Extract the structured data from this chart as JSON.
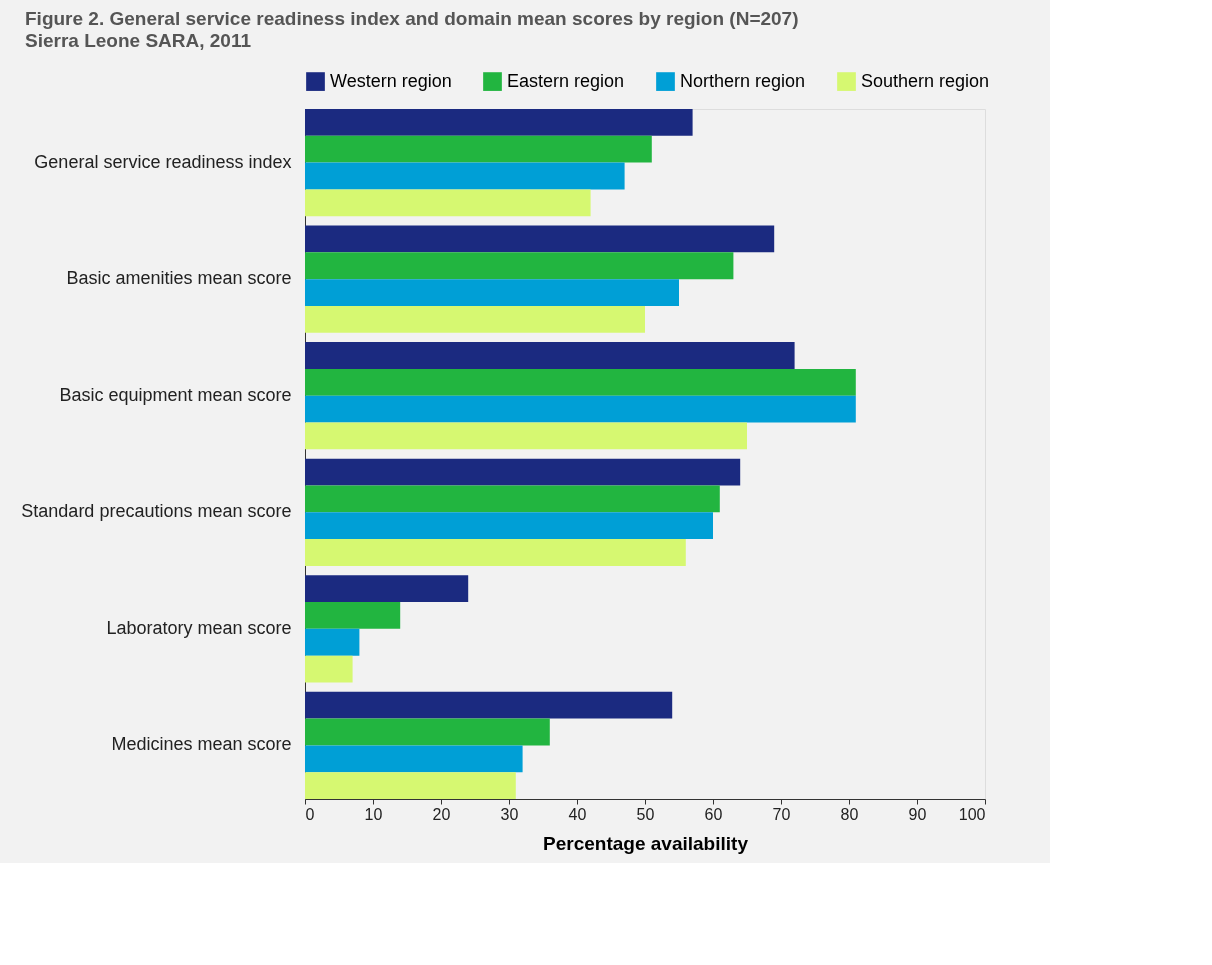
{
  "chart_data": {
    "type": "bar",
    "orientation": "horizontal",
    "title": "Figure 2.     General service readiness index and domain mean scores by region (N=207)",
    "subtitle": "Sierra Leone SARA, 2011",
    "xlabel": "Percentage availability",
    "categories": [
      "General service readiness index",
      "Basic amenities mean score",
      "Basic equipment mean score",
      "Standard precautions mean score",
      "Laboratory mean score",
      "Medicines mean score"
    ],
    "series": [
      {
        "name": "Western region",
        "color": "#1b2a80",
        "values": [
          57,
          69,
          72,
          64,
          24,
          54
        ]
      },
      {
        "name": "Eastern region",
        "color": "#22b540",
        "values": [
          51,
          63,
          81,
          61,
          14,
          36
        ]
      },
      {
        "name": "Northern region",
        "color": "#009fd6",
        "values": [
          47,
          55,
          81,
          60,
          8,
          32
        ]
      },
      {
        "name": "Southern region",
        "color": "#d6f871",
        "values": [
          42,
          50,
          65,
          56,
          7,
          31
        ]
      }
    ],
    "xlim": [
      0,
      100
    ],
    "xticks": [
      0,
      10,
      20,
      30,
      40,
      50,
      60,
      70,
      80,
      90,
      100
    ],
    "grid": false,
    "legend": "top"
  }
}
